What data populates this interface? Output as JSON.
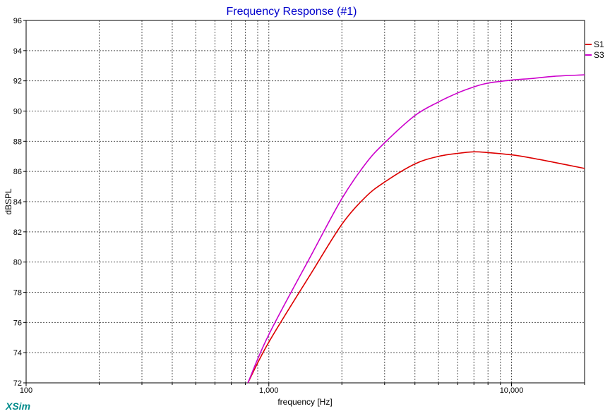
{
  "chart_data": {
    "type": "line",
    "title": "Frequency Response (#1)",
    "xlabel": "frequency [Hz]",
    "ylabel": "dBSPL",
    "xscale": "log",
    "xlim": [
      100,
      20000
    ],
    "ylim": [
      72,
      96
    ],
    "grid": true,
    "legend_placement": "right",
    "x_tick_labels": [
      {
        "value": 100,
        "label": "100"
      },
      {
        "value": 1000,
        "label": "1,000"
      },
      {
        "value": 10000,
        "label": "10,000"
      }
    ],
    "y_ticks": [
      72,
      74,
      76,
      78,
      80,
      82,
      84,
      86,
      88,
      90,
      92,
      94,
      96
    ],
    "series": [
      {
        "name": "S1",
        "color": "#dd0000",
        "points": [
          [
            820,
            72.0
          ],
          [
            1000,
            74.7
          ],
          [
            1500,
            79.3
          ],
          [
            2000,
            82.5
          ],
          [
            2500,
            84.3
          ],
          [
            3000,
            85.3
          ],
          [
            4000,
            86.5
          ],
          [
            5000,
            87.0
          ],
          [
            6000,
            87.2
          ],
          [
            7000,
            87.3
          ],
          [
            8000,
            87.25
          ],
          [
            10000,
            87.1
          ],
          [
            12000,
            86.9
          ],
          [
            15000,
            86.6
          ],
          [
            20000,
            86.2
          ]
        ]
      },
      {
        "name": "S3",
        "color": "#cc00cc",
        "points": [
          [
            820,
            72.0
          ],
          [
            1000,
            75.2
          ],
          [
            1500,
            80.5
          ],
          [
            2000,
            84.2
          ],
          [
            2500,
            86.5
          ],
          [
            3000,
            87.9
          ],
          [
            4000,
            89.7
          ],
          [
            5000,
            90.6
          ],
          [
            6000,
            91.2
          ],
          [
            7000,
            91.6
          ],
          [
            8000,
            91.85
          ],
          [
            10000,
            92.05
          ],
          [
            12000,
            92.15
          ],
          [
            15000,
            92.3
          ],
          [
            20000,
            92.4
          ]
        ]
      }
    ]
  },
  "brand": {
    "label": "XSim",
    "color": "#008b8b"
  },
  "colors": {
    "title": "#0000cc",
    "grid": "#555555",
    "axis": "#000000"
  }
}
